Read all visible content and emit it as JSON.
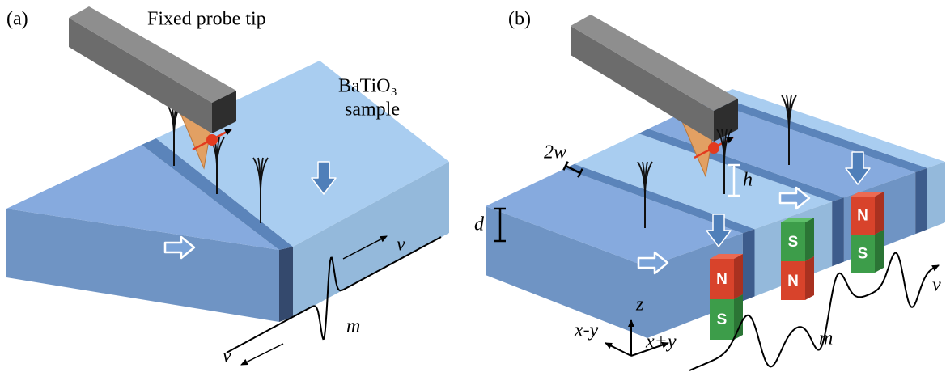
{
  "panel_a": {
    "label": "(a)",
    "probe_label": "Fixed probe tip",
    "sample_label": [
      "BaTiO₃",
      "sample"
    ],
    "velocity_labels": [
      "v",
      "v"
    ],
    "magnetization_label": "m"
  },
  "panel_b": {
    "label": "(b)",
    "dimension_labels": {
      "width": "2w",
      "height": "h",
      "thickness": "d"
    },
    "magnets": [
      {
        "top": "N",
        "bottom": "S"
      },
      {
        "top": "S",
        "bottom": "N"
      },
      {
        "top": "N",
        "bottom": "S"
      }
    ],
    "axes": {
      "z": "z",
      "x_minus_y": "x-y",
      "x_plus_y": "x+y"
    },
    "magnetization_label": "m",
    "velocity_label": "v"
  }
}
